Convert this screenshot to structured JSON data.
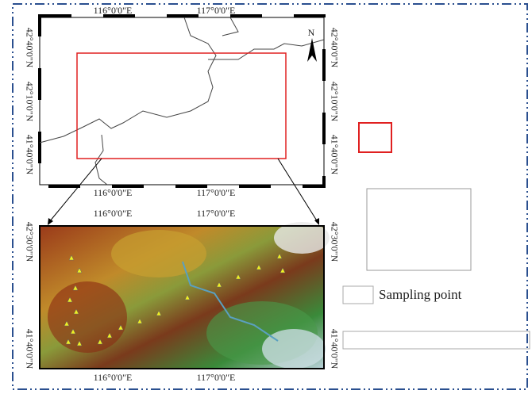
{
  "top_map": {
    "x_labels_top": [
      "116°0'0\"E",
      "117°0'0\"E"
    ],
    "x_labels_bottom": [
      "116°0'0\"E",
      "117°0'0\"E"
    ],
    "y_labels_left": [
      "42°40'0\"N",
      "42°10'0\"N",
      "41°40'0\"N"
    ],
    "y_labels_right": [
      "42°40'0\"N",
      "42°10'0\"N",
      "41°40'0\"N"
    ],
    "north": "N"
  },
  "bottom_map": {
    "x_labels_top": [
      "116°0'0\"E",
      "117°0'0\"E"
    ],
    "x_labels_bottom": [
      "116°0'0\"E",
      "117°0'0\"E"
    ],
    "y_labels_left": [
      "42°30'0\"N",
      "41°40'0\"N"
    ],
    "y_labels_right": [
      "42°30'0\"N",
      "41°40'0\"N"
    ]
  },
  "legend": {
    "sampling_point": "Sampling point"
  }
}
